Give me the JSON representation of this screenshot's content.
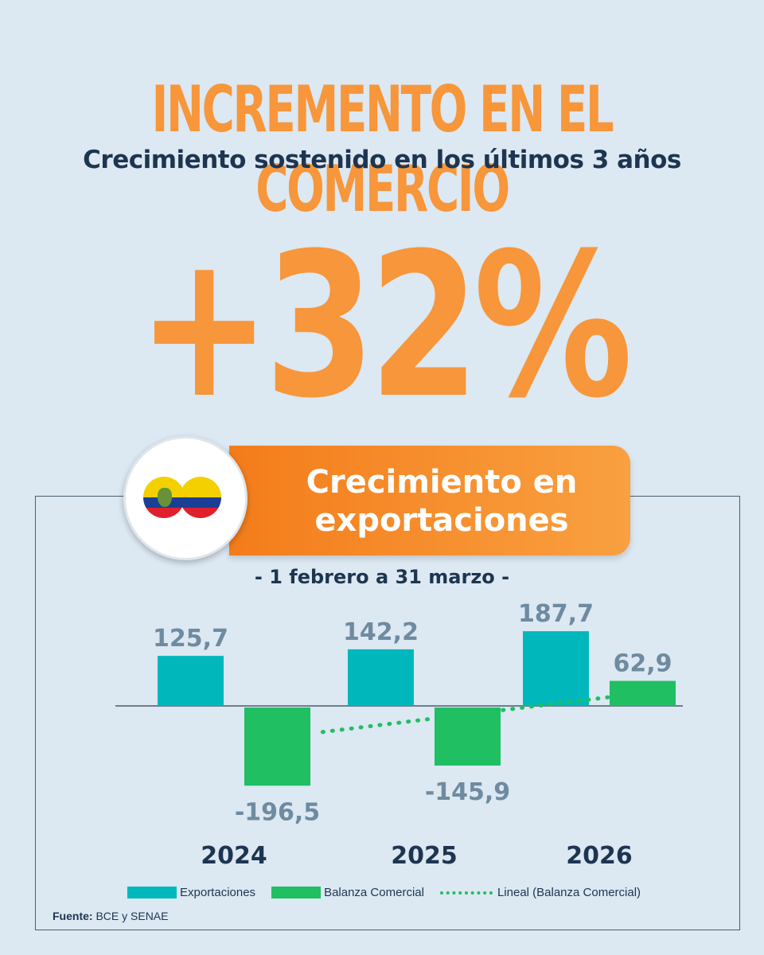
{
  "header": {
    "title": "INCREMENTO EN EL COMERCIO",
    "subtitle": "Crecimiento sostenido en los últimos 3 años"
  },
  "highlight": {
    "value": "+32%"
  },
  "banner": {
    "line1": "Crecimiento en",
    "line2": "exportaciones",
    "period": "- 1 febrero a 31 marzo -"
  },
  "colors": {
    "accent": "#f7963a",
    "navy": "#1d3550",
    "exportaciones": "#00b8bc",
    "balanza": "#1fbf62",
    "label": "#6e8ba0",
    "background": "#dce8f2"
  },
  "icons": [
    "ecuador-flag-icon",
    "colombia-flag-icon"
  ],
  "chart_data": {
    "type": "bar",
    "categories": [
      "2024",
      "2025",
      "2026"
    ],
    "series": [
      {
        "name": "Exportaciones",
        "values": [
          125.7,
          142.2,
          187.7
        ],
        "labels": [
          "125,7",
          "142,2",
          "187,7"
        ]
      },
      {
        "name": "Balanza Comercial",
        "values": [
          -196.5,
          -145.9,
          62.9
        ],
        "labels": [
          "-196,5",
          "-145,9",
          "62,9"
        ]
      }
    ],
    "trendline": {
      "name": "Lineal (Balanza Comercial)",
      "style": "dotted"
    },
    "legend_position": "bottom",
    "ylim": [
      -220,
      210
    ]
  },
  "legend": {
    "exportaciones": "Exportaciones",
    "balanza": "Balanza Comercial",
    "lineal": "Lineal (Balanza Comercial)"
  },
  "source": {
    "label": "Fuente:",
    "text": " BCE y SENAE"
  }
}
